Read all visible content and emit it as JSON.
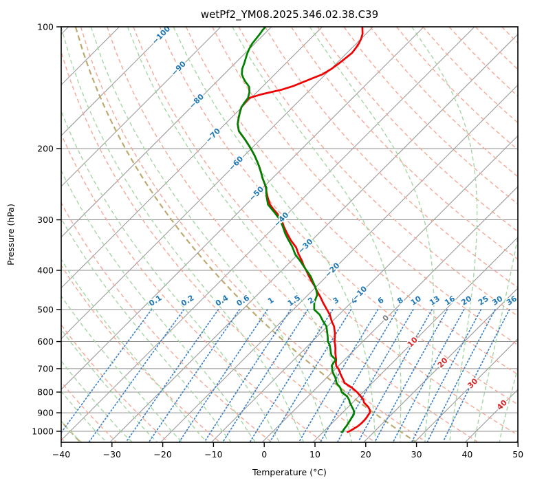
{
  "title": "wetPf2_YM08.2025.346.02.38.C39",
  "axes": {
    "x_label": "Temperature (°C)",
    "y_label": "Pressure (hPa)",
    "x_ticks": [
      -40,
      -30,
      -20,
      -10,
      0,
      10,
      20,
      30,
      40,
      50
    ],
    "y_ticks": [
      100,
      200,
      300,
      400,
      500,
      600,
      700,
      800,
      900,
      1000
    ]
  },
  "chart_data": {
    "type": "line",
    "subtype": "skew-t-log-p-sounding",
    "title": "wetPf2_YM08.2025.346.02.38.C39",
    "xlabel": "Temperature (°C)",
    "ylabel": "Pressure (hPa)",
    "x_range_c": [
      -40,
      50
    ],
    "pressure_range_hpa": [
      100,
      1064
    ],
    "grid": true,
    "series": [
      {
        "name": "temperature",
        "color": "#f00000",
        "points_p_t": [
          [
            1004,
            14.8
          ],
          [
            1000,
            15.0
          ],
          [
            985,
            15.4
          ],
          [
            970,
            15.7
          ],
          [
            955,
            15.8
          ],
          [
            940,
            15.8
          ],
          [
            925,
            15.7
          ],
          [
            910,
            15.5
          ],
          [
            900,
            15.4
          ],
          [
            885,
            14.8
          ],
          [
            870,
            13.9
          ],
          [
            850,
            12.3
          ],
          [
            835,
            11.5
          ],
          [
            820,
            10.4
          ],
          [
            800,
            8.8
          ],
          [
            780,
            6.9
          ],
          [
            760,
            4.6
          ],
          [
            745,
            3.6
          ],
          [
            725,
            2.2
          ],
          [
            710,
            1.2
          ],
          [
            700,
            0.5
          ],
          [
            690,
            -0.4
          ],
          [
            678,
            -1.1
          ],
          [
            665,
            -1.7
          ],
          [
            655,
            -2.3
          ],
          [
            640,
            -3.2
          ],
          [
            625,
            -4.0
          ],
          [
            610,
            -4.9
          ],
          [
            600,
            -5.6
          ],
          [
            585,
            -6.4
          ],
          [
            570,
            -7.3
          ],
          [
            550,
            -8.7
          ],
          [
            535,
            -10.1
          ],
          [
            515,
            -11.8
          ],
          [
            500,
            -13.4
          ],
          [
            480,
            -15.6
          ],
          [
            466,
            -17.1
          ],
          [
            450,
            -19.0
          ],
          [
            437,
            -20.5
          ],
          [
            427,
            -21.8
          ],
          [
            412,
            -23.7
          ],
          [
            400,
            -25.2
          ],
          [
            388,
            -26.8
          ],
          [
            379,
            -27.9
          ],
          [
            364,
            -30.0
          ],
          [
            351,
            -31.7
          ],
          [
            338,
            -34.0
          ],
          [
            325,
            -36.1
          ],
          [
            312,
            -38.2
          ],
          [
            300,
            -40.0
          ],
          [
            290,
            -42.0
          ],
          [
            282,
            -43.8
          ],
          [
            275,
            -45.3
          ],
          [
            265,
            -47.0
          ],
          [
            257,
            -48.3
          ],
          [
            250,
            -49.4
          ],
          [
            245,
            -50.3
          ],
          [
            237,
            -51.9
          ],
          [
            229,
            -53.4
          ],
          [
            223,
            -54.6
          ],
          [
            217,
            -55.9
          ],
          [
            208,
            -58.0
          ],
          [
            200,
            -60.1
          ],
          [
            190,
            -63.0
          ],
          [
            181,
            -65.9
          ],
          [
            174,
            -67.5
          ],
          [
            167,
            -68.7
          ],
          [
            162,
            -69.5
          ],
          [
            158,
            -70.1
          ],
          [
            154,
            -70.3
          ],
          [
            150,
            -70.4
          ],
          [
            147,
            -68.8
          ],
          [
            143,
            -65.6
          ],
          [
            140,
            -64.0
          ],
          [
            137,
            -62.9
          ],
          [
            134,
            -61.8
          ],
          [
            131,
            -60.6
          ],
          [
            127,
            -59.9
          ],
          [
            123,
            -59.5
          ],
          [
            119,
            -59.2
          ],
          [
            116,
            -59.0
          ],
          [
            113,
            -59.2
          ],
          [
            110,
            -59.5
          ],
          [
            107,
            -60.0
          ],
          [
            104,
            -60.7
          ],
          [
            102,
            -61.4
          ],
          [
            100,
            -62.1
          ]
        ]
      },
      {
        "name": "dewpoint",
        "color": "#008000",
        "points_p_t": [
          [
            1004,
            13.6
          ],
          [
            1000,
            13.7
          ],
          [
            985,
            13.5
          ],
          [
            970,
            13.4
          ],
          [
            955,
            13.2
          ],
          [
            940,
            13.0
          ],
          [
            925,
            12.8
          ],
          [
            910,
            12.6
          ],
          [
            900,
            12.3
          ],
          [
            885,
            11.6
          ],
          [
            870,
            10.7
          ],
          [
            850,
            9.5
          ],
          [
            835,
            8.7
          ],
          [
            820,
            7.7
          ],
          [
            800,
            5.8
          ],
          [
            780,
            4.6
          ],
          [
            760,
            3.0
          ],
          [
            737,
            1.7
          ],
          [
            720,
            0.5
          ],
          [
            710,
            -0.2
          ],
          [
            700,
            -0.7
          ],
          [
            688,
            -1.4
          ],
          [
            665,
            -1.8
          ],
          [
            650,
            -3.4
          ],
          [
            638,
            -4.2
          ],
          [
            625,
            -5.0
          ],
          [
            610,
            -6.0
          ],
          [
            600,
            -6.9
          ],
          [
            585,
            -7.8
          ],
          [
            570,
            -8.8
          ],
          [
            550,
            -10.2
          ],
          [
            535,
            -11.8
          ],
          [
            515,
            -13.8
          ],
          [
            500,
            -15.9
          ],
          [
            480,
            -17.3
          ],
          [
            460,
            -18.2
          ],
          [
            450,
            -19.1
          ],
          [
            440,
            -20.1
          ],
          [
            427,
            -21.6
          ],
          [
            415,
            -23.0
          ],
          [
            405,
            -24.4
          ],
          [
            395,
            -25.9
          ],
          [
            384,
            -27.5
          ],
          [
            375,
            -28.9
          ],
          [
            366,
            -30.4
          ],
          [
            357,
            -31.6
          ],
          [
            349,
            -32.7
          ],
          [
            337,
            -34.6
          ],
          [
            325,
            -36.5
          ],
          [
            312,
            -38.4
          ],
          [
            300,
            -40.3
          ],
          [
            287,
            -43.0
          ],
          [
            275,
            -45.7
          ],
          [
            265,
            -47.2
          ],
          [
            257,
            -48.4
          ],
          [
            250,
            -49.3
          ],
          [
            245,
            -50.3
          ],
          [
            237,
            -51.9
          ],
          [
            229,
            -53.4
          ],
          [
            223,
            -54.6
          ],
          [
            217,
            -55.9
          ],
          [
            208,
            -58.0
          ],
          [
            200,
            -60.1
          ],
          [
            190,
            -63.0
          ],
          [
            181,
            -65.9
          ],
          [
            174,
            -67.5
          ],
          [
            167,
            -68.7
          ],
          [
            162,
            -69.5
          ],
          [
            158,
            -70.1
          ],
          [
            154,
            -70.4
          ],
          [
            150,
            -70.6
          ],
          [
            145,
            -71.5
          ],
          [
            141,
            -72.5
          ],
          [
            139,
            -73.3
          ],
          [
            137,
            -74.2
          ],
          [
            134,
            -75.4
          ],
          [
            131,
            -76.5
          ],
          [
            127,
            -77.5
          ],
          [
            123,
            -78.2
          ],
          [
            119,
            -79.0
          ],
          [
            116,
            -79.6
          ],
          [
            113,
            -80.1
          ],
          [
            110,
            -80.5
          ],
          [
            107,
            -80.7
          ],
          [
            104,
            -80.9
          ],
          [
            102,
            -81.1
          ],
          [
            100,
            -81.2
          ]
        ]
      }
    ],
    "isotherms": {
      "start": -150,
      "end": 50,
      "step": 10,
      "color": "#999999"
    },
    "isotherm_labels": [
      {
        "t": -100,
        "p": 105
      },
      {
        "t": -90,
        "p": 127
      },
      {
        "t": -80,
        "p": 153
      },
      {
        "t": -70,
        "p": 186
      },
      {
        "t": -60,
        "p": 218
      },
      {
        "t": -50,
        "p": 259
      },
      {
        "t": -40,
        "p": 300
      },
      {
        "t": -30,
        "p": 349
      },
      {
        "t": -20,
        "p": 400
      },
      {
        "t": -10,
        "p": 457
      },
      {
        "t": 0,
        "p": 526
      },
      {
        "t": 10,
        "p": 603
      },
      {
        "t": 20,
        "p": 678
      },
      {
        "t": 30,
        "p": 763
      },
      {
        "t": 40,
        "p": 862
      }
    ],
    "dry_adiabats": {
      "theta_start_c": -43,
      "theta_end_c": 197,
      "step_c": 10,
      "color": "#f6a896"
    },
    "highlight_adiabats": {
      "theta_c": [
        -40,
        25
      ],
      "color": "#beaa6e"
    },
    "moist_adiabats": {
      "start_c": -40,
      "end_c": 45,
      "step_c": 5,
      "color": "#a5d6a5"
    },
    "mixing_ratio": {
      "values_g_kg": [
        0.1,
        0.2,
        0.4,
        0.6,
        1,
        1.5,
        2,
        3,
        4,
        6,
        8,
        10,
        13,
        16,
        20,
        25,
        30,
        36
      ],
      "top_pressure_hpa": 500,
      "label_pressure_hpa": 481,
      "line_color": "#3c82c8",
      "label_color": "#1f77b4"
    },
    "label_colors": {
      "negative": "#1f77b4",
      "zero": "#808080",
      "positive": "#d62728"
    },
    "legend": null
  },
  "layout_colors": {
    "grid": "#8f8f8f",
    "frame": "#000000",
    "background": "#ffffff"
  }
}
